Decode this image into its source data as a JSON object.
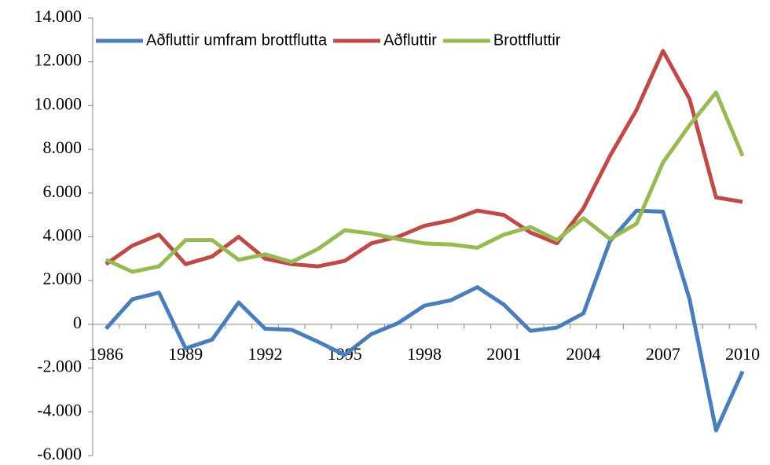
{
  "chart_data": {
    "type": "line",
    "categories": [
      "1986",
      null,
      null,
      "1989",
      null,
      null,
      "1992",
      null,
      null,
      "1995",
      null,
      null,
      "1998",
      null,
      null,
      "2001",
      null,
      null,
      "2004",
      null,
      null,
      "2007",
      null,
      null,
      "2010"
    ],
    "series": [
      {
        "name": "Aðfluttir umfram brottflutta",
        "color": "#4a7ebb",
        "values": [
          -200,
          1150,
          1450,
          -1100,
          -700,
          1000,
          -200,
          -250,
          -800,
          -1400,
          -450,
          50,
          850,
          1100,
          1700,
          900,
          -300,
          -150,
          500,
          3800,
          5200,
          5150,
          1150,
          -4850,
          -2150
        ]
      },
      {
        "name": "Aðfluttir",
        "color": "#be4b48",
        "values": [
          2750,
          3600,
          4100,
          2750,
          3100,
          4000,
          3000,
          2750,
          2650,
          2900,
          3700,
          4000,
          4500,
          4750,
          5200,
          5000,
          4200,
          3700,
          5300,
          7700,
          9800,
          12500,
          10300,
          5800,
          5600
        ]
      },
      {
        "name": "Brottfluttir",
        "color": "#98b954",
        "values": [
          2950,
          2400,
          2650,
          3850,
          3850,
          2950,
          3200,
          2850,
          3450,
          4300,
          4150,
          3900,
          3700,
          3650,
          3500,
          4100,
          4450,
          3850,
          4850,
          3900,
          4600,
          7400,
          9100,
          10600,
          7700
        ]
      }
    ],
    "ylim": [
      -6000,
      14000
    ],
    "yticks": [
      {
        "value": -6000,
        "label": "-6.000"
      },
      {
        "value": -4000,
        "label": "-4.000"
      },
      {
        "value": -2000,
        "label": "-2.000"
      },
      0,
      {
        "value": 2000,
        "label": "2.000"
      },
      {
        "value": 4000,
        "label": "4.000"
      },
      {
        "value": 6000,
        "label": "6.000"
      },
      {
        "value": 8000,
        "label": "8.000"
      },
      {
        "value": 10000,
        "label": "10.000"
      },
      {
        "value": 12000,
        "label": "12.000"
      },
      {
        "value": 14000,
        "label": "14.000"
      }
    ],
    "legend": "top",
    "grid": false
  }
}
